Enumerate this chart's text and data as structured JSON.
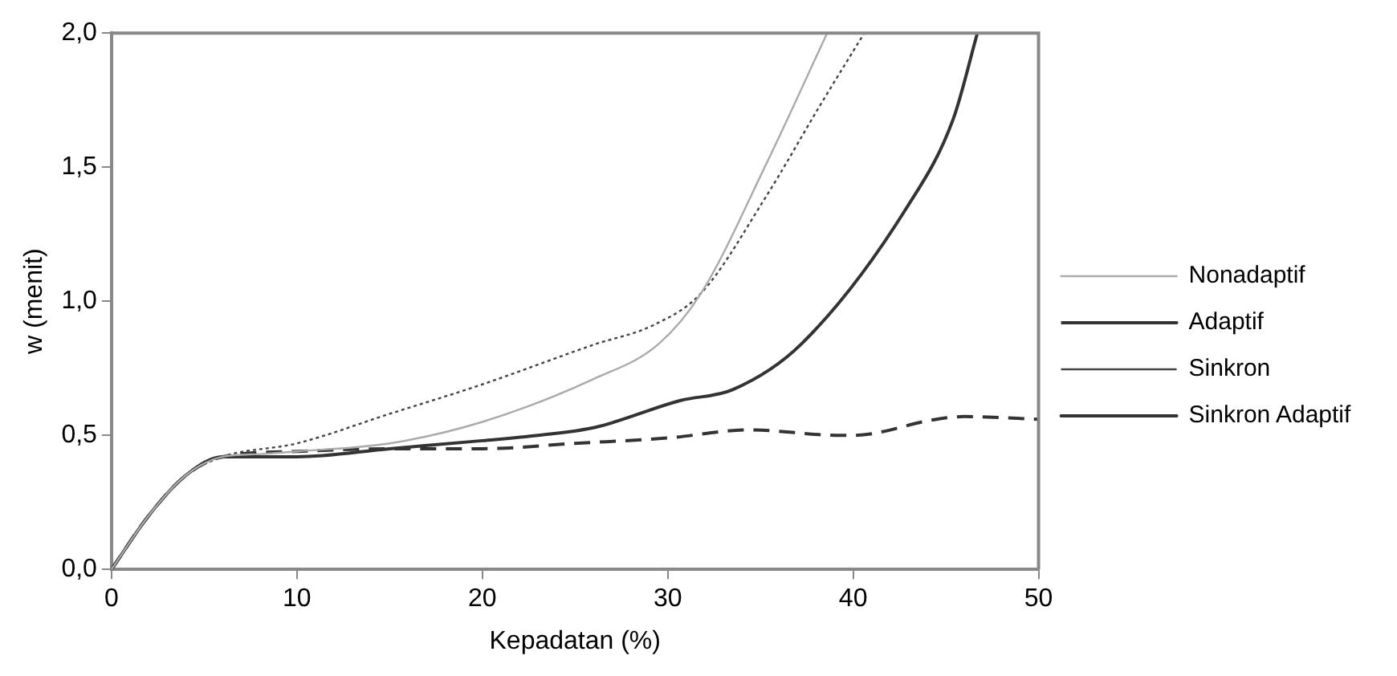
{
  "chart_data": {
    "type": "line",
    "xlabel": "Kepadatan (%)",
    "ylabel": "w (menit)",
    "xlim": [
      0,
      50
    ],
    "xticks": [
      0,
      10,
      20,
      30,
      40,
      50
    ],
    "ylim": [
      0,
      2
    ],
    "yticks": [
      {
        "value": 0,
        "label": "0,0"
      },
      {
        "value": 0.5,
        "label": "0,5"
      },
      {
        "value": 1,
        "label": "1,0"
      },
      {
        "value": 1.5,
        "label": "1,5"
      },
      {
        "value": 2,
        "label": "2,0"
      }
    ],
    "grid": false,
    "legend": "right",
    "marker": "none",
    "series": [
      {
        "name": "Nonadaptif",
        "color": "#aaaaaa",
        "line_style": "solid",
        "x": [
          0,
          2,
          4,
          6,
          8,
          10,
          15,
          20,
          26,
          29.5,
          31.8,
          35.3,
          38.6
        ],
        "values": [
          0,
          0.2,
          0.35,
          0.42,
          0.43,
          0.44,
          0.47,
          0.55,
          0.71,
          0.84,
          1.03,
          1.51,
          2.0
        ]
      },
      {
        "name": "Adaptif",
        "color": "#333333",
        "line_style": "dashed",
        "x": [
          0,
          2,
          4,
          6,
          10,
          15,
          20,
          25,
          30,
          34.4,
          39.3,
          40,
          44.5,
          46,
          50
        ],
        "values": [
          0,
          0.2,
          0.35,
          0.42,
          0.44,
          0.45,
          0.45,
          0.47,
          0.49,
          0.52,
          0.5,
          0.5,
          0.56,
          0.57,
          0.56
        ]
      },
      {
        "name": "Sinkron",
        "color": "#444444",
        "line_style": "dotted",
        "x": [
          0,
          2,
          4,
          6,
          10,
          15,
          20,
          26.1,
          29.2,
          31.8,
          35.3,
          38.3,
          40.6
        ],
        "values": [
          0,
          0.2,
          0.35,
          0.42,
          0.47,
          0.58,
          0.69,
          0.84,
          0.91,
          1.03,
          1.39,
          1.74,
          2.0
        ]
      },
      {
        "name": "Sinkron Adaptif",
        "color": "#333333",
        "line_style": "solid",
        "x": [
          0,
          2,
          4,
          6,
          10,
          15,
          20,
          23,
          26.1,
          30.7,
          33.5,
          37.2,
          42.9,
          45.4,
          46.7
        ],
        "values": [
          0,
          0.2,
          0.35,
          0.42,
          0.42,
          0.45,
          0.48,
          0.5,
          0.53,
          0.63,
          0.67,
          0.84,
          1.35,
          1.68,
          2.0
        ]
      }
    ]
  }
}
